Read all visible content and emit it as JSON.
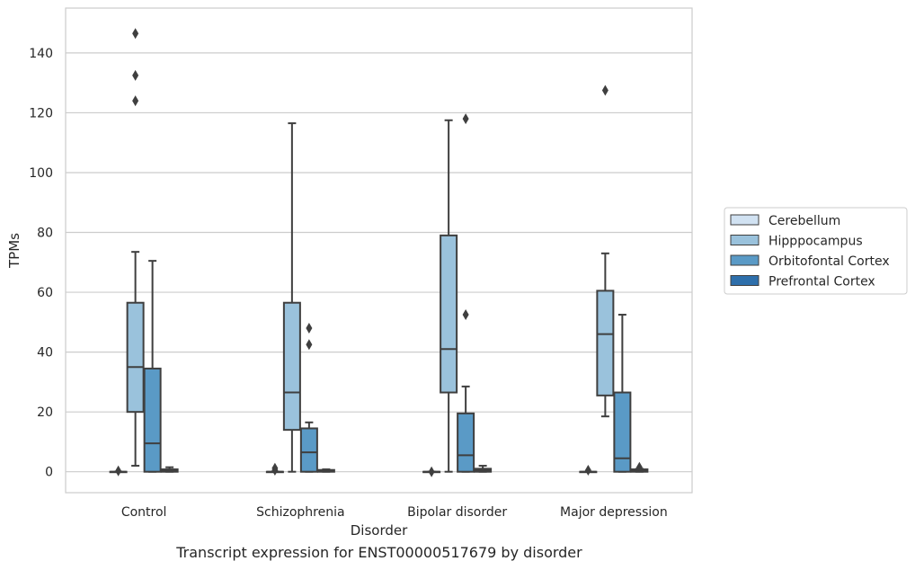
{
  "caption": "Transcript expression for ENST00000517679 by disorder",
  "chart_data": {
    "type": "box",
    "title": "",
    "xlabel": "Disorder",
    "ylabel": "TPMs",
    "categories": [
      "Control",
      "Schizophrenia",
      "Bipolar disorder",
      "Major depression"
    ],
    "ylim": [
      -7,
      155
    ],
    "yticks": [
      0,
      20,
      40,
      60,
      80,
      100,
      120,
      140
    ],
    "grid": true,
    "legend_position": "right",
    "series": [
      {
        "name": "Cerebellum",
        "color": "#d1e2f2",
        "boxes": [
          {
            "min": 0,
            "q1": 0,
            "median": 0,
            "q3": 0,
            "max": 0,
            "outliers": [
              0.3
            ]
          },
          {
            "min": 0,
            "q1": 0,
            "median": 0,
            "q3": 0,
            "max": 0,
            "outliers": [
              0.5,
              1.2
            ]
          },
          {
            "min": 0,
            "q1": 0,
            "median": 0,
            "q3": 0,
            "max": 0,
            "outliers": [
              0
            ]
          },
          {
            "min": 0,
            "q1": 0,
            "median": 0,
            "q3": 0,
            "max": 0,
            "outliers": [
              0.5
            ]
          }
        ]
      },
      {
        "name": "Hipppocampus",
        "color": "#9ac2dc",
        "boxes": [
          {
            "min": 2,
            "q1": 20,
            "median": 35,
            "q3": 56.5,
            "max": 73.5,
            "outliers": [
              124,
              132.5,
              146.5
            ]
          },
          {
            "min": 0,
            "q1": 14,
            "median": 26.5,
            "q3": 56.5,
            "max": 116.5,
            "outliers": []
          },
          {
            "min": 0,
            "q1": 26.5,
            "median": 41,
            "q3": 79,
            "max": 117.5,
            "outliers": []
          },
          {
            "min": 18.5,
            "q1": 25.5,
            "median": 46,
            "q3": 60.5,
            "max": 73,
            "outliers": [
              127.5
            ]
          }
        ]
      },
      {
        "name": "Orbitofontal Cortex",
        "color": "#5a9ac6",
        "boxes": [
          {
            "min": 0,
            "q1": 0,
            "median": 9.5,
            "q3": 34.5,
            "max": 70.5,
            "outliers": []
          },
          {
            "min": 0,
            "q1": 0,
            "median": 6.5,
            "q3": 14.5,
            "max": 16.5,
            "outliers": [
              42.5,
              48
            ]
          },
          {
            "min": 0,
            "q1": 0,
            "median": 5.5,
            "q3": 19.5,
            "max": 28.5,
            "outliers": [
              52.5,
              118
            ]
          },
          {
            "min": 0,
            "q1": 0,
            "median": 4.5,
            "q3": 26.5,
            "max": 52.5,
            "outliers": []
          }
        ]
      },
      {
        "name": "Prefrontal Cortex",
        "color": "#2e6fab",
        "boxes": [
          {
            "min": 0,
            "q1": 0,
            "median": 0.3,
            "q3": 0.8,
            "max": 1.5,
            "outliers": []
          },
          {
            "min": 0,
            "q1": 0,
            "median": 0.3,
            "q3": 0.6,
            "max": 0.8,
            "outliers": []
          },
          {
            "min": 0,
            "q1": 0,
            "median": 0.5,
            "q3": 1.0,
            "max": 2.0,
            "outliers": []
          },
          {
            "min": 0,
            "q1": 0,
            "median": 0.4,
            "q3": 0.8,
            "max": 1.0,
            "outliers": [
              1.5
            ]
          }
        ]
      }
    ]
  }
}
